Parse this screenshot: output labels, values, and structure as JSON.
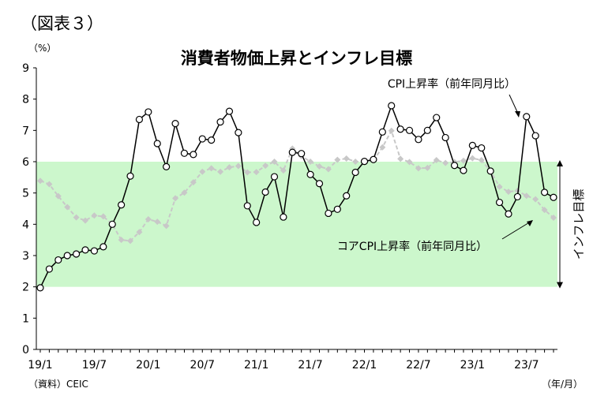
{
  "figure_label": "（図表３）",
  "unit_label": "（%）",
  "source_label": "（資料）CEIC",
  "x_unit_label": "（年/月）",
  "chart_data": {
    "type": "line",
    "title": "消費者物価上昇とインフレ目標",
    "ylim": [
      0,
      9
    ],
    "yticks": [
      0,
      1,
      2,
      3,
      4,
      5,
      6,
      7,
      8,
      9
    ],
    "x_tick_labels": [
      "19/1",
      "19/7",
      "20/1",
      "20/7",
      "21/1",
      "21/7",
      "22/1",
      "22/7",
      "23/1",
      "23/7"
    ],
    "x_tick_index": [
      0,
      6,
      12,
      18,
      24,
      30,
      36,
      42,
      48,
      54
    ],
    "x_start": "2019-01",
    "band": {
      "from": 2,
      "to": 6,
      "color": "#ccf7cc",
      "label": "インフレ目標"
    },
    "series": [
      {
        "name": "CPI上昇率（前年同月比）",
        "color": "#000000",
        "values": [
          1.97,
          2.57,
          2.86,
          3.0,
          3.05,
          3.18,
          3.15,
          3.28,
          4.0,
          4.62,
          5.54,
          7.35,
          7.59,
          6.58,
          5.84,
          7.22,
          6.27,
          6.23,
          6.73,
          6.69,
          7.27,
          7.61,
          6.93,
          4.59,
          4.06,
          5.03,
          5.52,
          4.23,
          6.3,
          6.26,
          5.59,
          5.3,
          4.35,
          4.48,
          4.91,
          5.66,
          6.01,
          6.07,
          6.95,
          7.79,
          7.04,
          7.0,
          6.71,
          7.0,
          7.41,
          6.77,
          5.88,
          5.72,
          6.52,
          6.44,
          5.7,
          4.7,
          4.33,
          4.88,
          7.44,
          6.83,
          5.02,
          4.86
        ]
      },
      {
        "name": "コアCPI上昇率（前年同月比）",
        "color": "#c8c8c8",
        "values": [
          5.39,
          5.28,
          4.9,
          4.55,
          4.22,
          4.12,
          4.28,
          4.25,
          4.0,
          3.5,
          3.47,
          3.75,
          4.16,
          4.08,
          3.95,
          4.83,
          5.01,
          5.34,
          5.68,
          5.79,
          5.68,
          5.82,
          5.86,
          5.66,
          5.67,
          5.87,
          6.0,
          5.72,
          6.42,
          6.18,
          6.0,
          5.85,
          5.76,
          6.06,
          6.1,
          6.0,
          6.0,
          6.04,
          6.46,
          6.99,
          6.09,
          5.99,
          5.79,
          5.8,
          6.05,
          5.96,
          5.99,
          6.03,
          6.11,
          6.05,
          5.7,
          5.2,
          5.04,
          5.07,
          4.91,
          4.8,
          4.46,
          4.21
        ]
      }
    ]
  }
}
